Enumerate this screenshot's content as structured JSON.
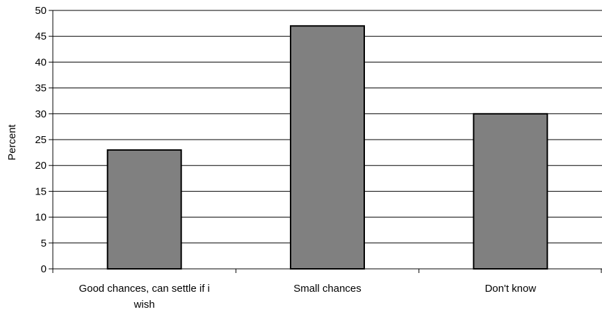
{
  "chart_data": {
    "type": "bar",
    "categories": [
      "Good chances, can settle if i wish",
      "Small chances",
      "Don't know"
    ],
    "category_label_lines": [
      [
        "Good chances, can settle if i",
        "wish"
      ],
      [
        "Small chances"
      ],
      [
        "Don't know"
      ]
    ],
    "values": [
      23,
      47,
      30
    ],
    "title": "",
    "xlabel": "",
    "ylabel": "Percent",
    "ylim": [
      0,
      50
    ],
    "yticks": [
      0,
      5,
      10,
      15,
      20,
      25,
      30,
      35,
      40,
      45,
      50
    ],
    "grid": true,
    "legend": "none",
    "colors": {
      "bar": "#808080",
      "bar_border": "#000000",
      "grid": "#000000",
      "background": "#ffffff"
    }
  }
}
